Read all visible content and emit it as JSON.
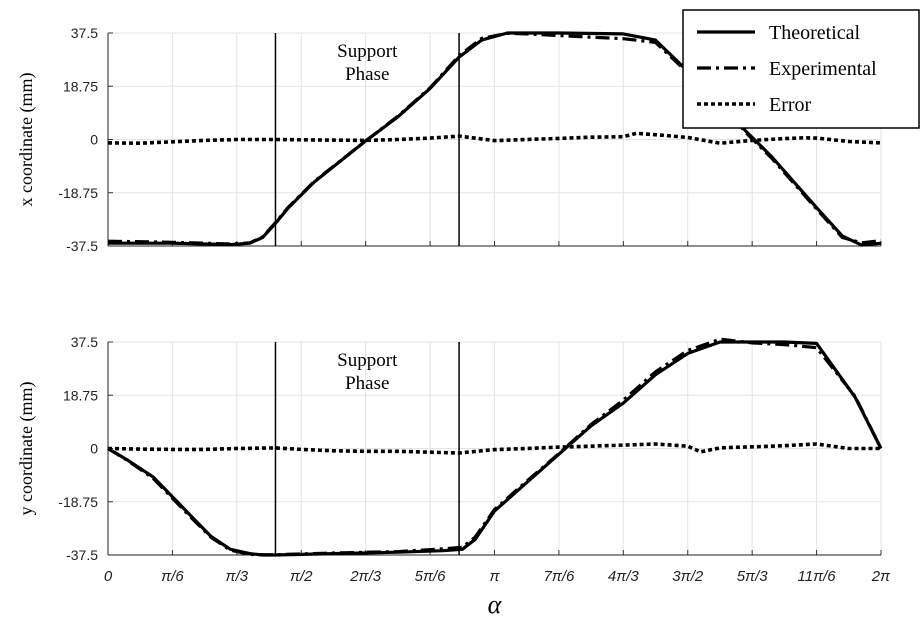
{
  "chart_data": [
    {
      "type": "line",
      "ylabel": "x coordinate (mm)",
      "xlabel": "",
      "ylim": [
        -37.5,
        37.5
      ],
      "yticks": [
        "37.5",
        "18.75",
        "0",
        "-18.75",
        "-37.5"
      ],
      "ytick_values": [
        37.5,
        18.75,
        0,
        -18.75,
        -37.5
      ],
      "xlim": [
        0,
        12
      ],
      "grid": true,
      "annotation": {
        "lines": [
          "Support",
          "Phase"
        ]
      },
      "vlines_x": [
        2.6,
        5.45
      ],
      "legend": {
        "placement": "top-right"
      },
      "series": [
        {
          "name": "Theoretical",
          "style": "solid",
          "x": [
            0,
            1,
            1.5,
            1.9,
            2.2,
            2.4,
            2.6,
            2.8,
            3.2,
            4,
            4.5,
            5,
            5.45,
            5.8,
            6.2,
            6.5,
            7,
            8,
            8.5,
            9,
            9.3,
            9.6,
            9.9,
            10.3,
            11,
            11.4,
            11.7,
            12
          ],
          "y": [
            -36.5,
            -36.5,
            -36.8,
            -37.0,
            -36.5,
            -34.5,
            -29.5,
            -24,
            -15,
            -0.5,
            8,
            18,
            29,
            35,
            37.5,
            37.5,
            37.5,
            37.2,
            35,
            24,
            18,
            11,
            3,
            -6,
            -24,
            -34,
            -37.2,
            -36.5
          ]
        },
        {
          "name": "Experimental",
          "style": "dashdot",
          "x": [
            0,
            1,
            1.5,
            1.9,
            2.2,
            2.4,
            2.6,
            2.8,
            3.2,
            4,
            4.5,
            5,
            5.45,
            5.8,
            6.2,
            6.5,
            7,
            8,
            8.5,
            9,
            9.3,
            9.6,
            9.9,
            10.3,
            11,
            11.4,
            11.7,
            12
          ],
          "y": [
            -35.8,
            -36.2,
            -36.5,
            -36.8,
            -36.4,
            -34.3,
            -29.3,
            -23.8,
            -14.8,
            -0.5,
            8.2,
            18.2,
            29.5,
            35.6,
            37.4,
            37.2,
            36.6,
            35.5,
            34.2,
            23.5,
            17.5,
            10.5,
            2.5,
            -6.5,
            -24.5,
            -34.5,
            -36.4,
            -35.6
          ]
        },
        {
          "name": "Error",
          "style": "dotted",
          "x": [
            0,
            0.5,
            1,
            1.5,
            2,
            2.6,
            3,
            3.5,
            4,
            4.5,
            5,
            5.45,
            6,
            6.5,
            7,
            7.5,
            8,
            8.2,
            8.6,
            9,
            9.5,
            10,
            10.5,
            10.8,
            11,
            11.5,
            12
          ],
          "y": [
            -1.2,
            -1.3,
            -0.8,
            -0.3,
            0,
            0,
            -0.1,
            -0.2,
            -0.3,
            0,
            0.5,
            1.2,
            -0.4,
            0,
            0.4,
            0.8,
            1.0,
            2.2,
            1.5,
            0.7,
            -1.3,
            -0.3,
            0.3,
            0.6,
            0.5,
            -0.7,
            -1.2
          ]
        }
      ]
    },
    {
      "type": "line",
      "ylabel": "y coordinate (mm)",
      "xlabel": "α",
      "ylim": [
        -37.5,
        37.5
      ],
      "yticks": [
        "37.5",
        "18.75",
        "0",
        "-18.75",
        "-37.5"
      ],
      "ytick_values": [
        37.5,
        18.75,
        0,
        -18.75,
        -37.5
      ],
      "xlim": [
        0,
        12
      ],
      "xticks": [
        "0",
        "π/6",
        "π/3",
        "π/2",
        "2π/3",
        "5π/6",
        "π",
        "7π/6",
        "4π/3",
        "3π/2",
        "5π/3",
        "11π/6",
        "2π"
      ],
      "grid": true,
      "annotation": {
        "lines": [
          "Support",
          "Phase"
        ]
      },
      "vlines_x": [
        2.6,
        5.45
      ],
      "series": [
        {
          "name": "Theoretical",
          "style": "solid",
          "x": [
            0,
            0.3,
            0.7,
            1,
            1.3,
            1.6,
            1.9,
            2.2,
            2.4,
            2.6,
            3.5,
            4.5,
            5.2,
            5.5,
            5.7,
            6,
            6.5,
            7,
            7.5,
            8,
            8.5,
            9,
            9.5,
            10,
            10.5,
            11,
            11.6,
            12
          ],
          "y": [
            0,
            -4,
            -10,
            -17,
            -24,
            -31,
            -35.5,
            -37,
            -37.5,
            -37.5,
            -37,
            -36.5,
            -36.0,
            -35.5,
            -32,
            -22,
            -12,
            -2,
            8,
            16,
            26,
            33.5,
            37.5,
            37.5,
            37.5,
            37.0,
            18,
            0
          ]
        },
        {
          "name": "Experimental",
          "style": "dashdot",
          "x": [
            0,
            0.3,
            0.7,
            1,
            1.3,
            1.6,
            1.9,
            2.2,
            2.4,
            2.6,
            3.5,
            4.5,
            5.2,
            5.5,
            5.7,
            6,
            6.5,
            7,
            7.5,
            8,
            8.5,
            9,
            9.5,
            10,
            10.5,
            11,
            11.6,
            12
          ],
          "y": [
            0,
            -4.2,
            -10.5,
            -17.5,
            -24.5,
            -31.3,
            -35.8,
            -37.3,
            -37.4,
            -37.4,
            -36.8,
            -36.3,
            -35.3,
            -34.8,
            -31.2,
            -21.5,
            -11.5,
            -1.8,
            8.5,
            17,
            27,
            34.5,
            38.5,
            37.2,
            36.6,
            35.5,
            18.3,
            0
          ]
        },
        {
          "name": "Error",
          "style": "dotted",
          "x": [
            0,
            0.5,
            1,
            1.5,
            2,
            2.6,
            3,
            3.5,
            4,
            4.5,
            5,
            5.45,
            6,
            6.5,
            7,
            7.5,
            8,
            8.5,
            9,
            9.2,
            9.5,
            10,
            10.5,
            11,
            11.5,
            12
          ],
          "y": [
            0,
            -0.2,
            -0.3,
            -0.3,
            0,
            0.2,
            -0.3,
            -0.8,
            -1.0,
            -1.0,
            -1.3,
            -1.6,
            -0.4,
            0,
            0.5,
            0.8,
            1.2,
            1.6,
            0.8,
            -1.2,
            0.2,
            0.6,
            1.0,
            1.6,
            0,
            0
          ]
        }
      ]
    }
  ]
}
